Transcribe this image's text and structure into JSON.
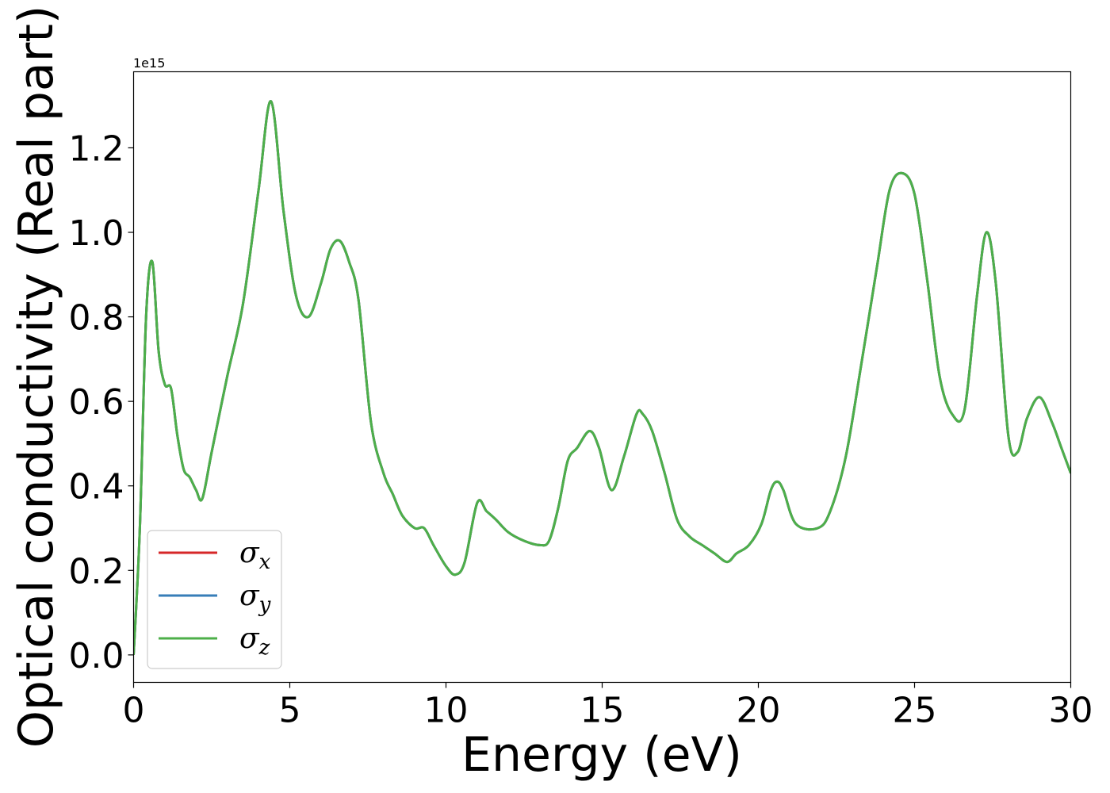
{
  "chart_data": {
    "type": "line",
    "xlabel": "Energy (eV)",
    "ylabel": "Optical conductivity (Real part)",
    "y_offset_label": "1e15",
    "xlim": [
      0,
      30
    ],
    "ylim": [
      -0.065,
      1.38
    ],
    "x_ticks": [
      0,
      5,
      10,
      15,
      20,
      25,
      30
    ],
    "x_tick_labels": [
      "0",
      "5",
      "10",
      "15",
      "20",
      "25",
      "30"
    ],
    "y_ticks": [
      0.0,
      0.2,
      0.4,
      0.6,
      0.8,
      1.0,
      1.2
    ],
    "y_tick_labels": [
      "0.0",
      "0.2",
      "0.4",
      "0.6",
      "0.8",
      "1.0",
      "1.2"
    ],
    "grid": false,
    "legend_position": "lower-left",
    "series": [
      {
        "name": "σx",
        "symbol": "σ",
        "subscript": "x",
        "color": "#d62728"
      },
      {
        "name": "σy",
        "symbol": "σ",
        "subscript": "y",
        "color": "#377eb8"
      },
      {
        "name": "σz",
        "symbol": "σ",
        "subscript": "z",
        "color": "#4daf4a"
      }
    ],
    "x": [
      0,
      0.2,
      0.4,
      0.6,
      0.8,
      1.0,
      1.2,
      1.4,
      1.6,
      1.8,
      2.0,
      2.2,
      2.5,
      3.0,
      3.5,
      4.0,
      4.4,
      4.8,
      5.2,
      5.6,
      6.0,
      6.3,
      6.6,
      6.9,
      7.2,
      7.6,
      8.0,
      8.3,
      8.6,
      9.0,
      9.3,
      9.6,
      10.0,
      10.3,
      10.6,
      11.0,
      11.3,
      11.6,
      12.0,
      12.5,
      13.0,
      13.3,
      13.6,
      13.9,
      14.2,
      14.6,
      14.9,
      15.3,
      15.7,
      16.1,
      16.3,
      16.6,
      17.0,
      17.4,
      17.8,
      18.2,
      18.6,
      19.0,
      19.3,
      19.7,
      20.1,
      20.4,
      20.6,
      20.8,
      21.2,
      21.9,
      22.3,
      22.8,
      23.3,
      23.8,
      24.2,
      24.6,
      25.0,
      25.4,
      25.8,
      26.2,
      26.6,
      27.0,
      27.3,
      27.6,
      28.0,
      28.3,
      28.6,
      29.0,
      29.4,
      29.7,
      30.0
    ],
    "y": [
      0.0,
      0.3,
      0.8,
      0.93,
      0.72,
      0.64,
      0.63,
      0.52,
      0.44,
      0.42,
      0.39,
      0.37,
      0.48,
      0.66,
      0.83,
      1.1,
      1.31,
      1.05,
      0.85,
      0.8,
      0.88,
      0.96,
      0.98,
      0.93,
      0.84,
      0.55,
      0.43,
      0.38,
      0.33,
      0.3,
      0.3,
      0.26,
      0.21,
      0.19,
      0.22,
      0.36,
      0.34,
      0.32,
      0.29,
      0.27,
      0.26,
      0.27,
      0.35,
      0.46,
      0.49,
      0.53,
      0.49,
      0.39,
      0.47,
      0.57,
      0.57,
      0.53,
      0.43,
      0.32,
      0.28,
      0.26,
      0.24,
      0.22,
      0.24,
      0.26,
      0.31,
      0.39,
      0.41,
      0.39,
      0.31,
      0.3,
      0.34,
      0.47,
      0.69,
      0.92,
      1.1,
      1.14,
      1.09,
      0.89,
      0.66,
      0.57,
      0.58,
      0.85,
      1.0,
      0.88,
      0.52,
      0.48,
      0.56,
      0.61,
      0.55,
      0.49,
      0.43
    ]
  }
}
